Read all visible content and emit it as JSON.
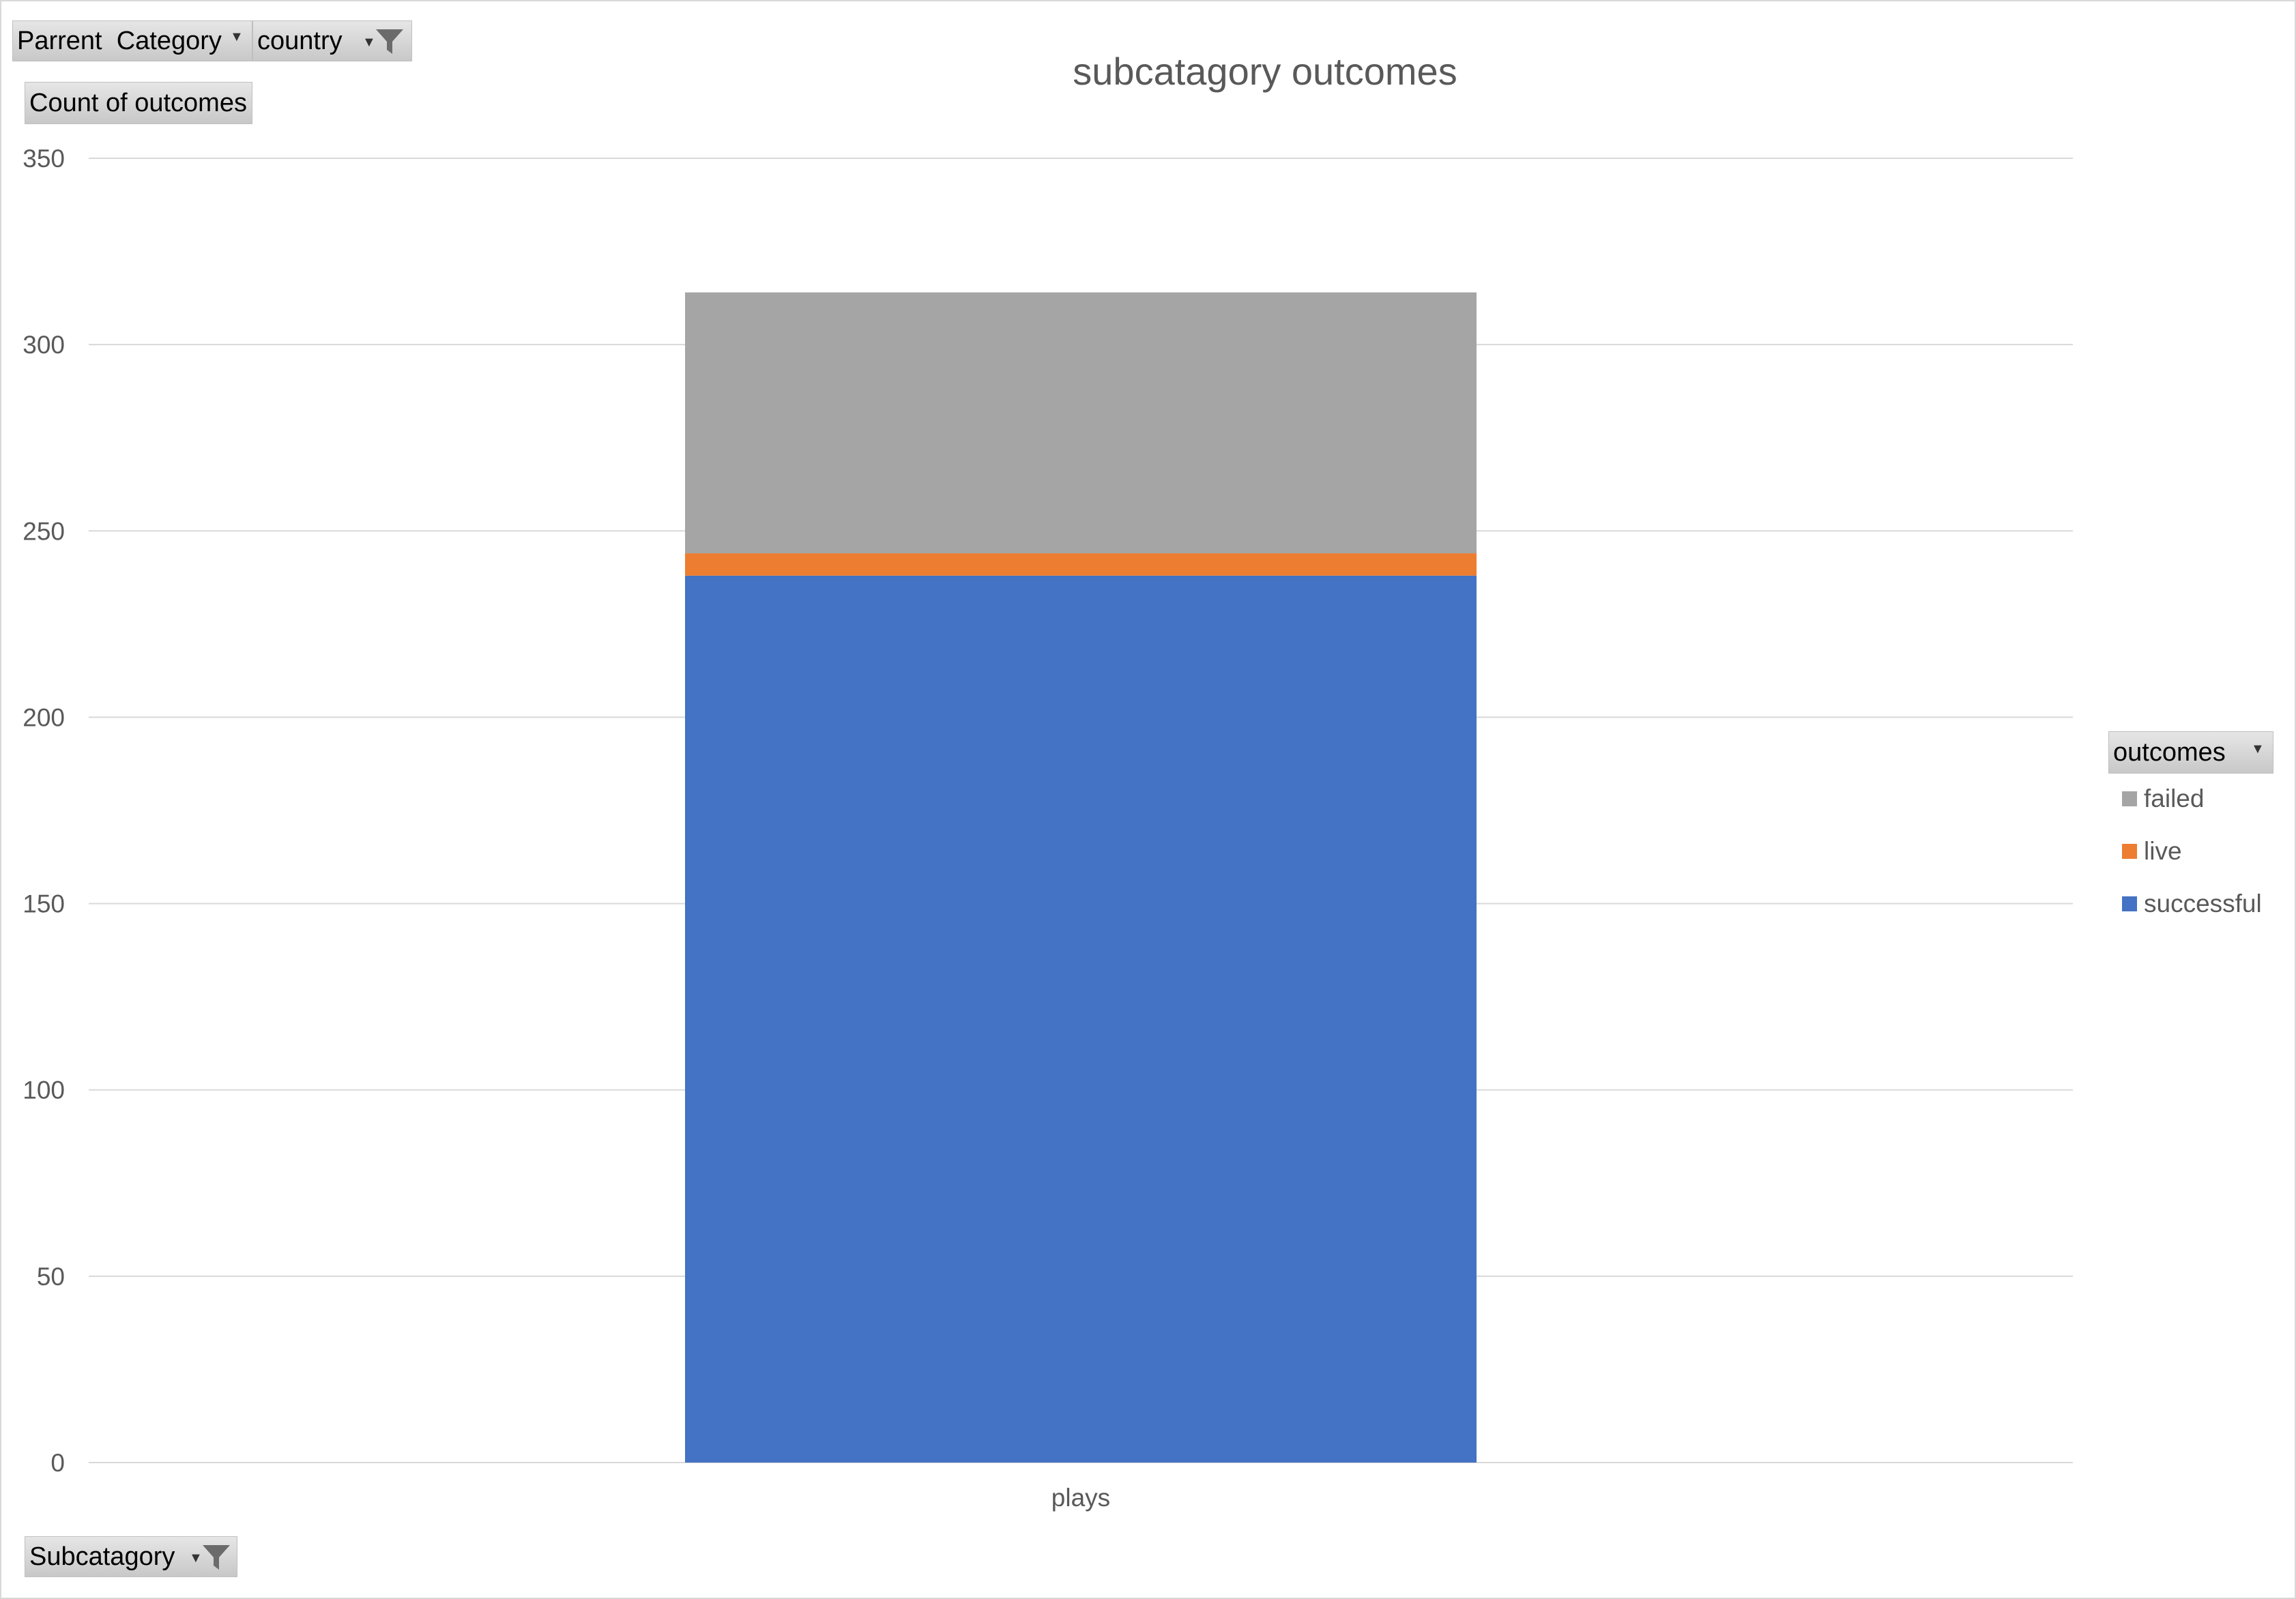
{
  "pivot_fields": {
    "filters": [
      {
        "label": "Parrent  Category",
        "filtered": false
      },
      {
        "label": "country",
        "filtered": true
      }
    ],
    "value_field": "Count of outcomes",
    "axis_field": {
      "label": "Subcatagory",
      "filtered": true
    },
    "legend_field": {
      "label": "outcomes"
    }
  },
  "chart_data": {
    "type": "bar",
    "stacked": true,
    "title": "subcatagory outcomes",
    "xlabel": "",
    "ylabel": "",
    "categories": [
      "plays"
    ],
    "series": [
      {
        "name": "successful",
        "values": [
          238
        ],
        "color": "#4472C4"
      },
      {
        "name": "live",
        "values": [
          6
        ],
        "color": "#ED7D31"
      },
      {
        "name": "failed",
        "values": [
          70
        ],
        "color": "#A5A5A5"
      }
    ],
    "ylim": [
      0,
      350
    ],
    "yticks": [
      0,
      50,
      100,
      150,
      200,
      250,
      300,
      350
    ],
    "grid": true,
    "legend_position": "right",
    "legend_order": [
      "failed",
      "live",
      "successful"
    ]
  },
  "colors": {
    "grid": "#d9d9d9",
    "axis_text": "#595959",
    "field_button": "#d0d0d0"
  },
  "icons": {
    "dropdown": "chevron-down-icon",
    "filter": "funnel-icon"
  }
}
